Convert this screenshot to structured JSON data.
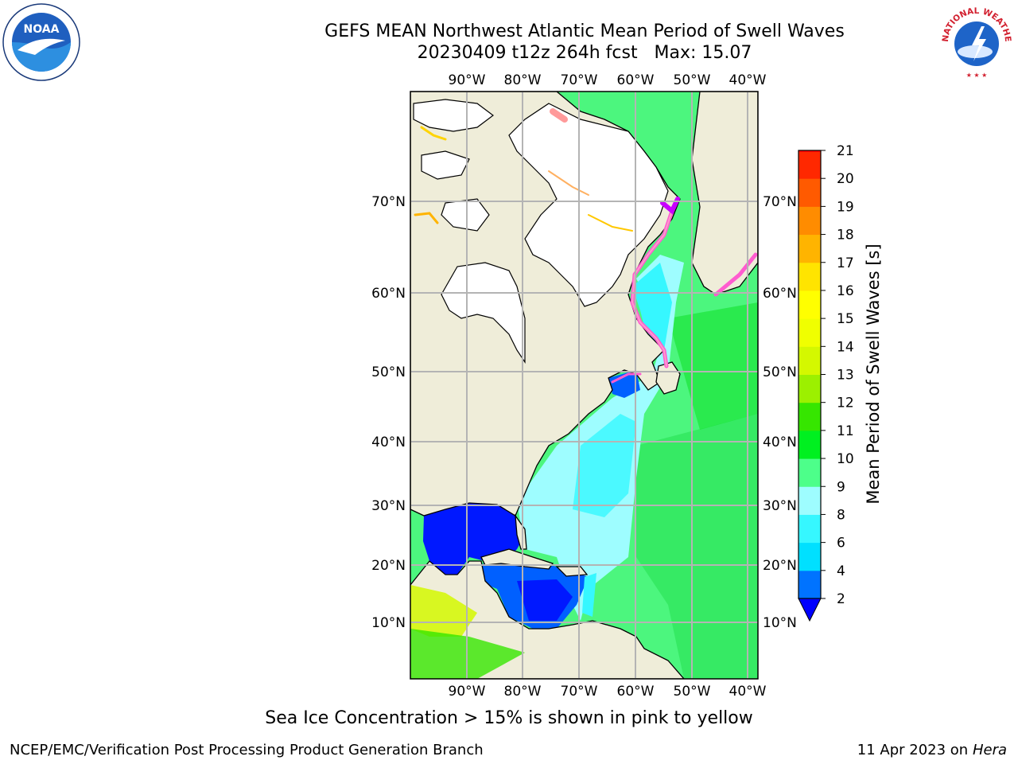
{
  "title": {
    "line1": "GEFS MEAN Northwest Atlantic Mean Period of Swell Waves",
    "line2": "20230409 t12z 264h fcst   Max: 15.07"
  },
  "map": {
    "lon_labels": [
      "90°W",
      "80°W",
      "70°W",
      "60°W",
      "50°W",
      "40°W"
    ],
    "lat_labels": [
      "70°N",
      "60°N",
      "50°N",
      "40°N",
      "30°N",
      "20°N",
      "10°N"
    ],
    "colors": {
      "land": "#efedd9",
      "ice_region": "#ffffff",
      "grid": "#b4b4b4",
      "coast": "#000000"
    }
  },
  "colorbar": {
    "label": "Mean Period of Swell Waves [s]",
    "ticks": [
      "2",
      "4",
      "6",
      "8",
      "9",
      "10",
      "11",
      "12",
      "13",
      "14",
      "15",
      "16",
      "17",
      "18",
      "19",
      "20",
      "21"
    ],
    "colors": [
      "#0073ff",
      "#00e0ff",
      "#36f7ff",
      "#9efdff",
      "#4dff8a",
      "#00f020",
      "#36e600",
      "#9cf000",
      "#d4f800",
      "#f0ff00",
      "#ffff00",
      "#ffe400",
      "#ffb400",
      "#ff8c00",
      "#ff5a00",
      "#ff2800",
      "#ff0000"
    ],
    "under_color": "#0000ff"
  },
  "ice_note": "Sea Ice Concentration > 15% is shown in pink to yellow",
  "footer": {
    "left": "NCEP/EMC/Verification Post Processing Product Generation Branch",
    "right_date": "11 Apr 2023 on",
    "right_host": "Hera"
  },
  "logos": {
    "noaa": "NOAA",
    "nws": "NATIONAL WEATHER SERVICE"
  }
}
